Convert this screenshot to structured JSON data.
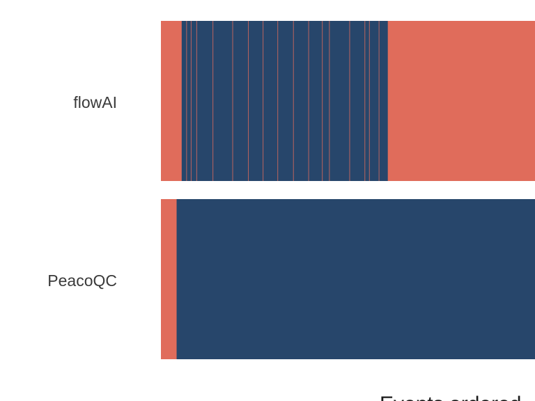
{
  "chart_data": {
    "type": "bar",
    "orientation": "horizontal",
    "layout": "event-strip",
    "title": "",
    "xlabel": "Events ordered",
    "ylabel": "",
    "grid": false,
    "legend": "none",
    "x_range_visible": [
      0,
      0.74
    ],
    "categories": [
      "flowAI",
      "PeacoQC"
    ],
    "colors": {
      "removed": "#e06c5b",
      "kept": "#27466b"
    },
    "series": [
      {
        "category": "flowAI",
        "segments": [
          {
            "status": "removed",
            "start": 0.0,
            "end": 0.041
          },
          {
            "status": "kept",
            "start": 0.041,
            "end": 0.448
          },
          {
            "status": "removed",
            "start": 0.448,
            "end": 0.74
          }
        ],
        "removed_events": [
          0.05,
          0.059,
          0.07,
          0.102,
          0.141,
          0.172,
          0.201,
          0.23,
          0.261,
          0.291,
          0.318,
          0.332,
          0.372,
          0.402,
          0.411,
          0.43
        ]
      },
      {
        "category": "PeacoQC",
        "segments": [
          {
            "status": "removed",
            "start": 0.0,
            "end": 0.031
          },
          {
            "status": "kept",
            "start": 0.031,
            "end": 0.74
          }
        ],
        "removed_events": []
      }
    ]
  }
}
